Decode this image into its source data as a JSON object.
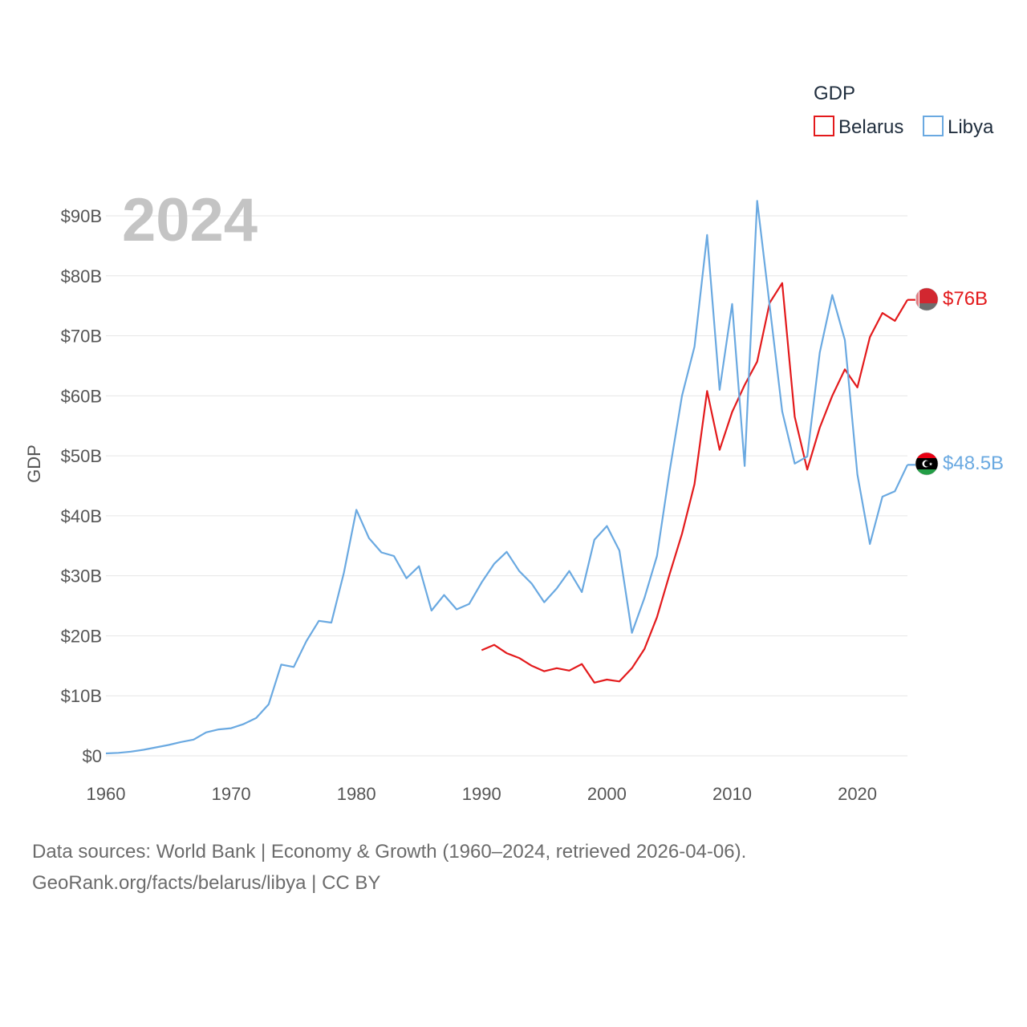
{
  "chart_data": {
    "type": "line",
    "legend_title": "GDP",
    "ylabel": "GDP",
    "current_year": "2024",
    "xlim": [
      1960,
      2024
    ],
    "ylim": [
      0,
      90
    ],
    "x_ticks": [
      1960,
      1970,
      1980,
      1990,
      2000,
      2010,
      2020
    ],
    "x_tick_labels": [
      "1960",
      "1970",
      "1980",
      "1990",
      "2000",
      "2010",
      "2020"
    ],
    "y_ticks": [
      0,
      10,
      20,
      30,
      40,
      50,
      60,
      70,
      80,
      90
    ],
    "y_tick_labels": [
      "$0",
      "$10B",
      "$20B",
      "$30B",
      "$40B",
      "$50B",
      "$60B",
      "$70B",
      "$80B",
      "$90B"
    ],
    "units": "billions USD",
    "series": [
      {
        "name": "Belarus",
        "color": "#e31a1c",
        "end_label": "$76B",
        "flag_icon": "belarus-flag-icon",
        "x": [
          1990,
          1991,
          1992,
          1993,
          1994,
          1995,
          1996,
          1997,
          1998,
          1999,
          2000,
          2001,
          2002,
          2003,
          2004,
          2005,
          2006,
          2007,
          2008,
          2009,
          2010,
          2011,
          2012,
          2013,
          2014,
          2015,
          2016,
          2017,
          2018,
          2019,
          2020,
          2021,
          2022,
          2023,
          2024
        ],
        "values": [
          17.6,
          18.5,
          17.1,
          16.3,
          15.0,
          14.1,
          14.6,
          14.2,
          15.3,
          12.2,
          12.7,
          12.4,
          14.6,
          17.8,
          23.1,
          30.2,
          37.0,
          45.3,
          60.8,
          51.0,
          57.3,
          61.8,
          65.7,
          75.5,
          78.8,
          56.5,
          47.7,
          54.7,
          60.0,
          64.4,
          61.4,
          69.8,
          73.8,
          72.5,
          76.0
        ]
      },
      {
        "name": "Libya",
        "color": "#6aa9e1",
        "end_label": "$48.5B",
        "flag_icon": "libya-flag-icon",
        "x": [
          1960,
          1961,
          1962,
          1963,
          1964,
          1965,
          1966,
          1967,
          1968,
          1969,
          1970,
          1971,
          1972,
          1973,
          1974,
          1975,
          1976,
          1977,
          1978,
          1979,
          1980,
          1981,
          1982,
          1983,
          1984,
          1985,
          1986,
          1987,
          1988,
          1989,
          1990,
          1991,
          1992,
          1993,
          1994,
          1995,
          1996,
          1997,
          1998,
          1999,
          2000,
          2001,
          2002,
          2003,
          2004,
          2005,
          2006,
          2007,
          2008,
          2009,
          2010,
          2011,
          2012,
          2013,
          2014,
          2015,
          2016,
          2017,
          2018,
          2019,
          2020,
          2021,
          2022,
          2023,
          2024
        ],
        "values": [
          0.4,
          0.5,
          0.7,
          1.0,
          1.4,
          1.8,
          2.3,
          2.7,
          3.9,
          4.4,
          4.6,
          5.3,
          6.3,
          8.6,
          15.2,
          14.8,
          19.1,
          22.5,
          22.2,
          30.5,
          41.0,
          36.3,
          33.9,
          33.3,
          29.6,
          31.6,
          24.2,
          26.8,
          24.4,
          25.3,
          28.9,
          32.0,
          34.0,
          30.8,
          28.7,
          25.6,
          27.9,
          30.8,
          27.3,
          36.0,
          38.3,
          34.2,
          20.5,
          26.3,
          33.3,
          47.3,
          60.0,
          68.2,
          86.8,
          61.0,
          75.3,
          48.3,
          92.5,
          75.0,
          57.4,
          48.7,
          49.9,
          67.2,
          76.8,
          69.3,
          46.9,
          35.3,
          43.2,
          44.1,
          48.5
        ]
      }
    ]
  },
  "footer": {
    "line1": "Data sources: World Bank | Economy & Growth (1960–2024, retrieved 2026-04-06).",
    "line2": "GeoRank.org/facts/belarus/libya | CC BY"
  }
}
